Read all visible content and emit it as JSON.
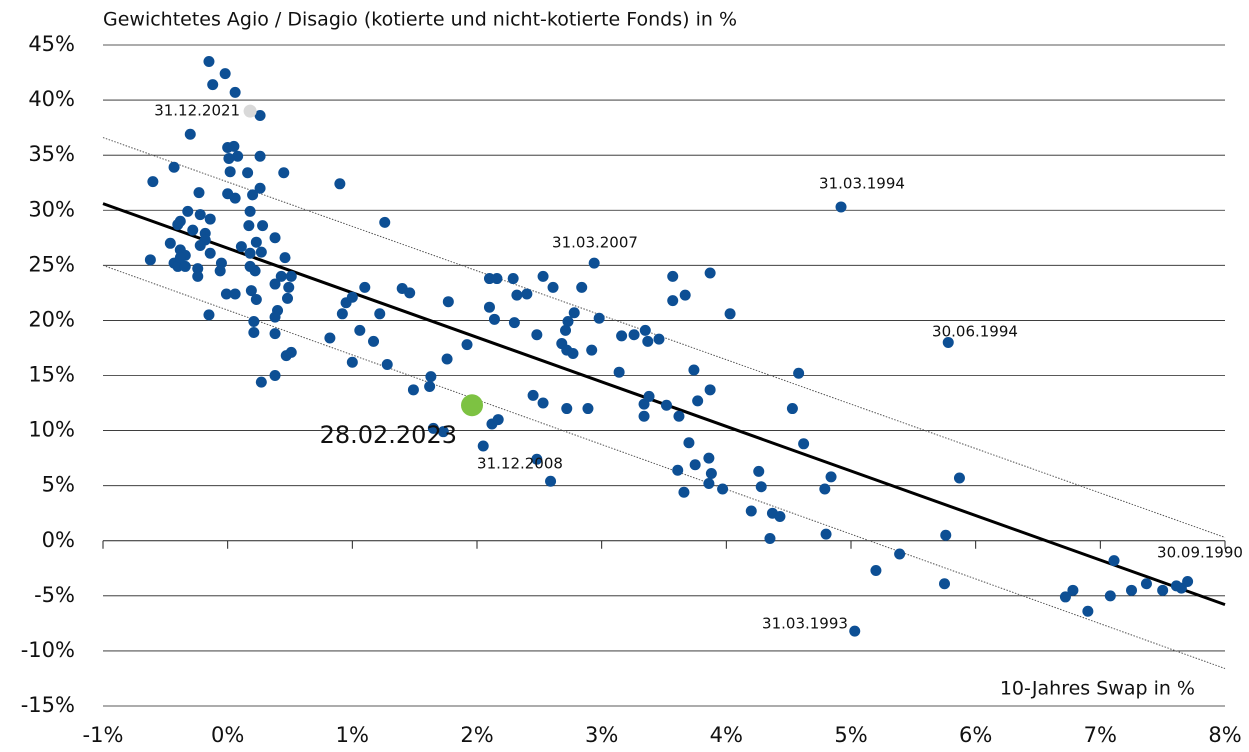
{
  "chart_data": {
    "type": "scatter",
    "title": "Gewichtetes Agio / Disagio (kotierte und nicht-kotierte Fonds) in %",
    "x_label": "10-Jahres Swap in %",
    "color": "#0d4f94",
    "grid": true,
    "xlim": [
      -1,
      8
    ],
    "ylim": [
      -15,
      45
    ],
    "xticks": [
      {
        "value": -1,
        "label": "-1%"
      },
      {
        "value": 0,
        "label": "0%"
      },
      {
        "value": 1,
        "label": "1%"
      },
      {
        "value": 2,
        "label": "2%"
      },
      {
        "value": 3,
        "label": "3%"
      },
      {
        "value": 4,
        "label": "4%"
      },
      {
        "value": 5,
        "label": "5%"
      },
      {
        "value": 6,
        "label": "6%"
      },
      {
        "value": 7,
        "label": "7%"
      },
      {
        "value": 8,
        "label": "8%"
      }
    ],
    "yticks": [
      {
        "value": -15,
        "label": "-15%"
      },
      {
        "value": -10,
        "label": "-10%"
      },
      {
        "value": -5,
        "label": "-5%"
      },
      {
        "value": 0,
        "label": "0%"
      },
      {
        "value": 5,
        "label": "5%"
      },
      {
        "value": 10,
        "label": "10%"
      },
      {
        "value": 15,
        "label": "15%"
      },
      {
        "value": 20,
        "label": "20%"
      },
      {
        "value": 25,
        "label": "25%"
      },
      {
        "value": 30,
        "label": "30%"
      },
      {
        "value": 35,
        "label": "35%"
      },
      {
        "value": 40,
        "label": "40%"
      },
      {
        "value": 45,
        "label": "45%"
      }
    ],
    "x": [
      -0.15,
      -0.02,
      -0.12,
      0.06,
      0.26,
      -0.3,
      0.0,
      0.05,
      0.08,
      0.01,
      0.26,
      -0.43,
      0.02,
      0.16,
      0.45,
      -0.6,
      0.26,
      -0.23,
      0.0,
      0.06,
      0.2,
      -0.32,
      -0.22,
      0.18,
      0.17,
      -0.4,
      -0.38,
      -0.28,
      -0.18,
      0.28,
      -0.14,
      -0.18,
      -0.22,
      0.11,
      0.23,
      0.38,
      -0.46,
      -0.38,
      -0.34,
      0.18,
      0.27,
      -0.14,
      -0.62,
      -0.43,
      -0.4,
      -0.34,
      -0.38,
      -0.24,
      -0.24,
      -0.05,
      -0.06,
      0.22,
      0.18,
      0.46,
      0.43,
      0.51,
      0.49,
      0.48,
      0.38,
      0.19,
      -0.01,
      0.06,
      0.23,
      0.4,
      0.38,
      -0.15,
      0.21,
      0.21,
      0.38,
      0.47,
      0.51,
      0.38,
      0.27,
      0.9,
      1.26,
      1.1,
      0.95,
      1.0,
      0.92,
      0.82,
      1.06,
      1.17,
      1.22,
      1.0,
      1.28,
      1.4,
      1.46,
      1.77,
      1.49,
      1.62,
      1.63,
      1.76,
      1.92,
      1.65,
      1.73,
      2.1,
      2.16,
      2.29,
      2.1,
      2.14,
      2.32,
      2.3,
      2.4,
      2.53,
      2.61,
      2.48,
      2.45,
      2.53,
      2.12,
      2.17,
      2.05,
      2.48,
      2.59,
      2.94,
      2.84,
      2.78,
      2.73,
      2.71,
      2.68,
      2.72,
      2.77,
      2.92,
      2.98,
      2.72,
      2.89,
      3.14,
      3.16,
      3.26,
      3.35,
      3.37,
      3.46,
      3.34,
      3.38,
      3.34,
      3.52,
      3.62,
      3.57,
      3.57,
      3.67,
      3.87,
      4.03,
      3.74,
      3.77,
      3.87,
      3.7,
      3.75,
      3.86,
      3.88,
      3.61,
      3.66,
      3.86,
      3.97,
      4.2,
      4.26,
      4.28,
      4.35,
      4.37,
      4.43,
      4.53,
      4.58,
      4.62,
      4.79,
      4.84,
      4.8,
      4.92,
      5.03,
      5.2,
      5.39,
      5.78,
      5.87,
      5.76,
      5.75,
      6.72,
      6.78,
      6.9,
      7.08,
      7.11,
      7.25,
      7.37,
      7.5,
      7.61,
      7.65,
      7.7
    ],
    "values": [
      43.5,
      42.4,
      41.4,
      40.7,
      38.6,
      36.9,
      35.7,
      35.8,
      34.9,
      34.7,
      34.9,
      33.9,
      33.5,
      33.4,
      33.4,
      32.6,
      32.0,
      31.6,
      31.5,
      31.1,
      31.4,
      29.9,
      29.6,
      29.9,
      28.6,
      28.7,
      29.0,
      28.2,
      27.9,
      28.6,
      29.2,
      27.3,
      26.8,
      26.7,
      27.1,
      27.5,
      27.0,
      26.4,
      25.9,
      26.1,
      26.2,
      26.1,
      25.5,
      25.2,
      24.9,
      24.9,
      25.7,
      24.7,
      24.0,
      25.2,
      24.5,
      24.5,
      24.9,
      25.7,
      24.0,
      24.0,
      23.0,
      22.0,
      23.3,
      22.7,
      22.4,
      22.4,
      21.9,
      20.9,
      20.3,
      20.5,
      19.9,
      18.9,
      18.8,
      16.8,
      17.1,
      15.0,
      14.4,
      32.4,
      28.9,
      23.0,
      21.6,
      22.1,
      20.6,
      18.4,
      19.1,
      18.1,
      20.6,
      16.2,
      16.0,
      22.9,
      22.5,
      21.7,
      13.7,
      14.0,
      14.9,
      16.5,
      17.8,
      10.2,
      9.9,
      23.8,
      23.8,
      23.8,
      21.2,
      20.1,
      22.3,
      19.8,
      22.4,
      24.0,
      23.0,
      18.7,
      13.2,
      12.5,
      10.6,
      11.0,
      8.6,
      7.4,
      5.4,
      25.2,
      23.0,
      20.7,
      19.9,
      19.1,
      17.9,
      17.3,
      17.0,
      17.3,
      20.2,
      12.0,
      12.0,
      15.3,
      18.6,
      18.7,
      19.1,
      18.1,
      18.3,
      12.4,
      13.1,
      11.3,
      12.3,
      11.3,
      24.0,
      21.8,
      22.3,
      24.3,
      20.6,
      15.5,
      12.7,
      13.7,
      8.9,
      6.9,
      7.5,
      6.1,
      6.4,
      4.4,
      5.2,
      4.7,
      2.7,
      6.3,
      4.9,
      0.2,
      2.5,
      2.2,
      12.0,
      15.2,
      8.8,
      4.7,
      5.8,
      0.6,
      30.3,
      -8.2,
      -2.7,
      -1.2,
      18.0,
      5.7,
      0.5,
      -3.9,
      -5.1,
      -4.5,
      -6.4,
      -5.0,
      -1.8,
      -4.5,
      -3.9,
      -4.5,
      -4.1,
      -4.3,
      -3.7
    ],
    "points": [
      {
        "label": "31.12.2021",
        "x": 0.18,
        "y": 39.0,
        "color": "#d9d9d9"
      },
      {
        "label": "28.02.2023",
        "x": 1.96,
        "y": 12.3,
        "color": "#7dc242"
      }
    ],
    "lines": [
      {
        "x": [
          -1,
          8
        ],
        "values": [
          30.6,
          -5.8
        ],
        "color": "#000000",
        "style": "solid"
      },
      {
        "x": [
          -1,
          8
        ],
        "values": [
          36.6,
          0.3
        ],
        "color": "#555555",
        "style": "dotted"
      },
      {
        "x": [
          -1,
          8
        ],
        "values": [
          25.0,
          -11.6
        ],
        "color": "#555555",
        "style": "dotted"
      }
    ],
    "annotations": [
      "31.03.1994",
      "31.03.2007",
      "30.06.1994",
      "31.12.2008",
      "31.03.1993",
      "30.09.1990"
    ]
  }
}
